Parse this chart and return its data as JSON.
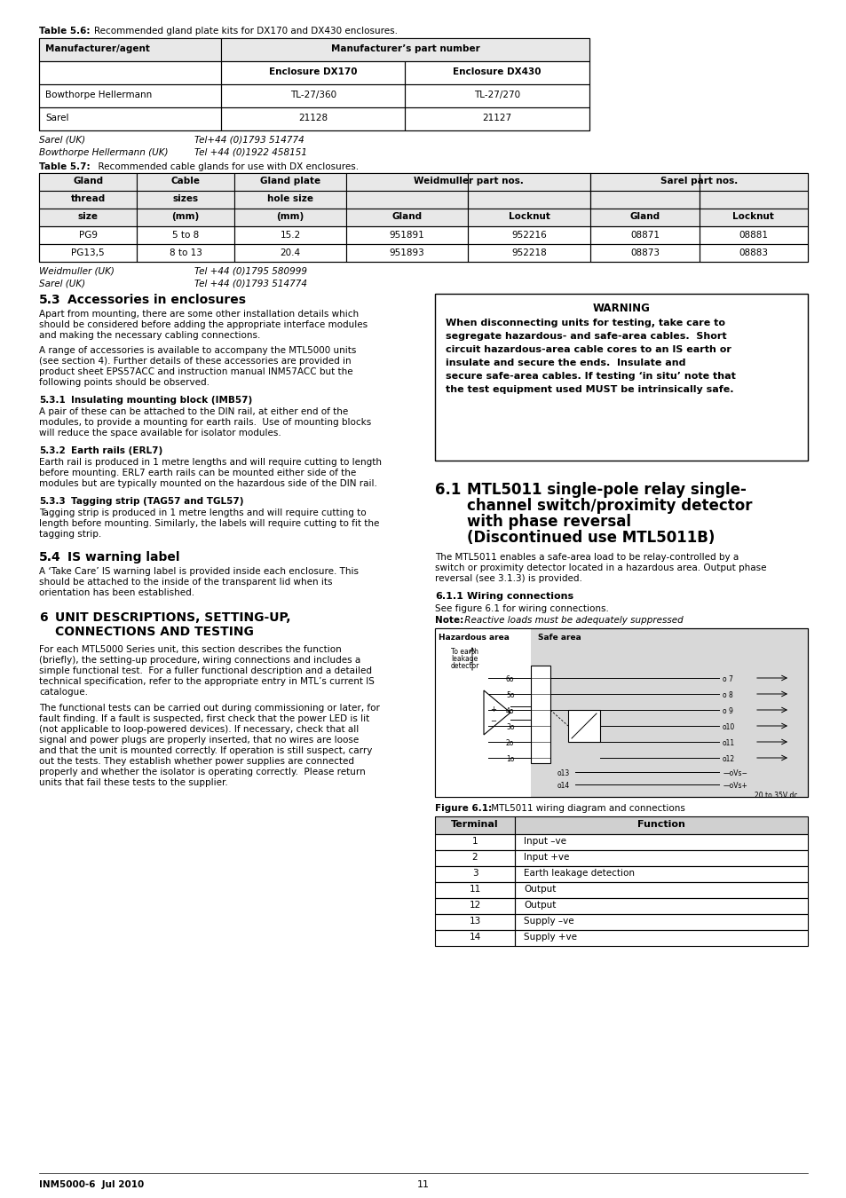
{
  "page_bg": "#ffffff",
  "table56_rows": [
    [
      "Bowthorpe Hellermann",
      "TL-27/360",
      "TL-27/270"
    ],
    [
      "Sarel",
      "21128",
      "21127"
    ]
  ],
  "sarel_uk": "Sarel (UK)",
  "sarel_uk_tel": "Tel+44 (0)1793 514774",
  "bowthorpe_uk": "Bowthorpe Hellermann (UK)",
  "bowthorpe_uk_tel": "Tel +44 (0)1922 458151",
  "table57_rows": [
    [
      "PG9",
      "5 to 8",
      "15.2",
      "951891",
      "952216",
      "08871",
      "08881"
    ],
    [
      "PG13,5",
      "8 to 13",
      "20.4",
      "951893",
      "952218",
      "08873",
      "08883"
    ]
  ],
  "weidmuller_uk": "Weidmuller (UK)",
  "weidmuller_uk_tel": "Tel +44 (0)1795 580999",
  "sarel_uk2": "Sarel (UK)",
  "sarel_uk2_tel": "Tel +44 (0)1793 514774",
  "terminal_rows": [
    [
      "1",
      "Input –ve"
    ],
    [
      "2",
      "Input +ve"
    ],
    [
      "3",
      "Earth leakage detection"
    ],
    [
      "11",
      "Output"
    ],
    [
      "12",
      "Output"
    ],
    [
      "13",
      "Supply –ve"
    ],
    [
      "14",
      "Supply +ve"
    ]
  ],
  "footer_left": "INM5000-6  Jul 2010",
  "footer_center": "11"
}
